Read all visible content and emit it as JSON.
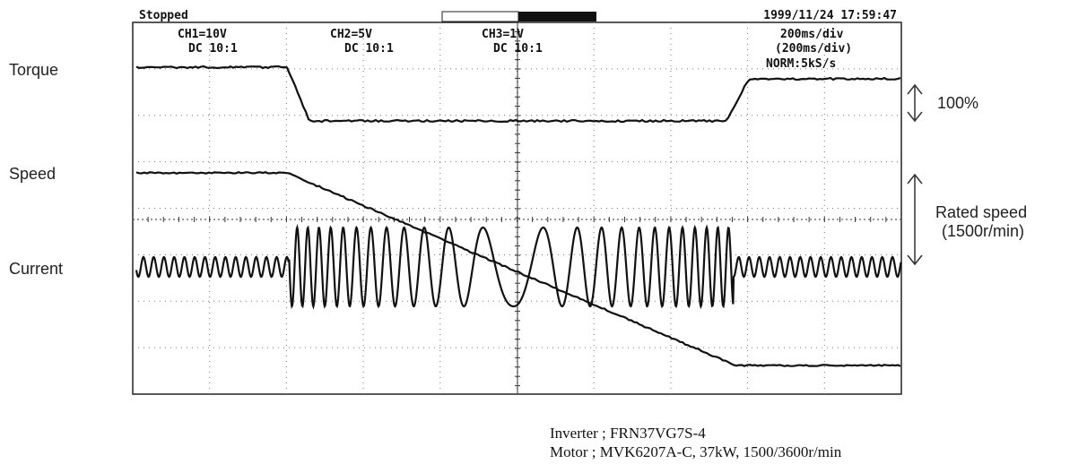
{
  "header": {
    "status": "Stopped",
    "timestamp": "1999/11/24  17:59:47"
  },
  "channels": [
    {
      "scale": "CH1=10V",
      "coupling": "DC  10:1"
    },
    {
      "scale": "CH2=5V",
      "coupling": "DC  10:1"
    },
    {
      "scale": "CH3=1V",
      "coupling": "DC  10:1"
    }
  ],
  "timebase": {
    "line1": "200ms/div",
    "line2": "(200ms/div)",
    "line3": "NORM:5kS/s"
  },
  "traces": {
    "torque": "Torque",
    "speed": "Speed",
    "current": "Current"
  },
  "annotations": {
    "torque_scale": "100%",
    "speed_scale_1": "Rated speed",
    "speed_scale_2": "(1500r/min)"
  },
  "footer": {
    "inverter": "Inverter  ; FRN37VG7S-4",
    "motor": "Motor    ; MVK6207A-C, 37kW, 1500/3600r/min"
  }
}
